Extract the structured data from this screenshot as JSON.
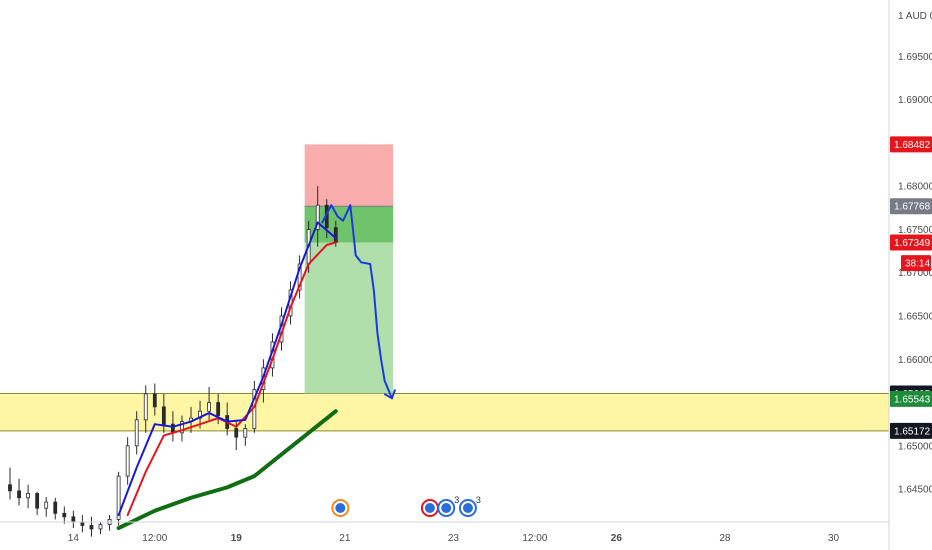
{
  "chart_data": {
    "type": "candlestick",
    "title": "",
    "currency_label": "AUD",
    "y_axis": {
      "ylim": [
        1.6412,
        1.7015
      ],
      "ticks": [
        "1.69500",
        "1.69000",
        "1.68000",
        "1.67500",
        "1.67000",
        "1.66500",
        "1.66000",
        "1.65000",
        "1.64500"
      ],
      "tick_values": [
        1.695,
        1.69,
        1.68,
        1.675,
        1.67,
        1.665,
        1.66,
        1.65,
        1.645
      ]
    },
    "x_axis": {
      "ticks": [
        {
          "label": "14",
          "i": 7,
          "bold": false
        },
        {
          "label": "12:00",
          "i": 16,
          "bold": false
        },
        {
          "label": "19",
          "i": 25,
          "bold": true
        },
        {
          "label": "21",
          "i": 37,
          "bold": false
        },
        {
          "label": "23",
          "i": 49,
          "bold": false
        },
        {
          "label": "12:00",
          "i": 58,
          "bold": false
        },
        {
          "label": "26",
          "i": 67,
          "bold": true
        },
        {
          "label": "28",
          "i": 79,
          "bold": false
        },
        {
          "label": "30",
          "i": 91,
          "bold": false
        }
      ]
    },
    "price_tags": [
      {
        "label": "1.68482",
        "value": 1.68482,
        "color": "#e5151d"
      },
      {
        "label": "1.67768",
        "value": 1.67768,
        "color": "#787b86"
      },
      {
        "label": "1.67349",
        "value": 1.67349,
        "color": "#e5151d"
      },
      {
        "label": "38:14",
        "value": 1.6711,
        "color": "#e5151d",
        "outline": true
      },
      {
        "label": "1.65605",
        "value": 1.65605,
        "color": "#131722"
      },
      {
        "label": "1.65543",
        "value": 1.65543,
        "color": "#1e8c3a"
      },
      {
        "label": "1.65172",
        "value": 1.65172,
        "color": "#131722"
      }
    ],
    "zone": {
      "from": 1.65172,
      "to": 1.65605,
      "color": "#fff59b"
    },
    "position": {
      "type": "short",
      "entry": 1.67768,
      "stop": 1.68482,
      "target": 1.65605,
      "current": 1.67349,
      "i_start": 33,
      "i_end": 42
    },
    "candles": [
      [
        1.6455,
        1.6475,
        1.6438,
        1.6448
      ],
      [
        1.6448,
        1.6462,
        1.6431,
        1.644
      ],
      [
        1.644,
        1.6455,
        1.6428,
        1.6445
      ],
      [
        1.6445,
        1.6447,
        1.642,
        1.6428
      ],
      [
        1.6428,
        1.6441,
        1.6418,
        1.6435
      ],
      [
        1.6435,
        1.644,
        1.6415,
        1.6422
      ],
      [
        1.6422,
        1.643,
        1.641,
        1.6418
      ],
      [
        1.6418,
        1.6425,
        1.6405,
        1.6412
      ],
      [
        1.6412,
        1.642,
        1.64,
        1.6408
      ],
      [
        1.6408,
        1.6418,
        1.6395,
        1.6404
      ],
      [
        1.6404,
        1.6412,
        1.6398,
        1.6409
      ],
      [
        1.6409,
        1.642,
        1.6402,
        1.6415
      ],
      [
        1.6415,
        1.647,
        1.6408,
        1.6465
      ],
      [
        1.6465,
        1.651,
        1.6455,
        1.65
      ],
      [
        1.65,
        1.654,
        1.649,
        1.653
      ],
      [
        1.653,
        1.657,
        1.6515,
        1.656
      ],
      [
        1.656,
        1.6572,
        1.6535,
        1.6545
      ],
      [
        1.6545,
        1.656,
        1.6515,
        1.6525
      ],
      [
        1.6525,
        1.654,
        1.6505,
        1.6515
      ],
      [
        1.6515,
        1.6535,
        1.6505,
        1.6528
      ],
      [
        1.6528,
        1.6545,
        1.6515,
        1.6532
      ],
      [
        1.6532,
        1.6552,
        1.652,
        1.654
      ],
      [
        1.654,
        1.6568,
        1.653,
        1.655
      ],
      [
        1.655,
        1.656,
        1.6525,
        1.6535
      ],
      [
        1.6535,
        1.655,
        1.6512,
        1.652
      ],
      [
        1.652,
        1.653,
        1.6495,
        1.651
      ],
      [
        1.651,
        1.6525,
        1.65,
        1.652
      ],
      [
        1.652,
        1.6575,
        1.6515,
        1.6565
      ],
      [
        1.6565,
        1.66,
        1.655,
        1.659
      ],
      [
        1.659,
        1.663,
        1.658,
        1.662
      ],
      [
        1.662,
        1.666,
        1.661,
        1.665
      ],
      [
        1.665,
        1.669,
        1.664,
        1.668
      ],
      [
        1.668,
        1.672,
        1.667,
        1.671
      ],
      [
        1.671,
        1.676,
        1.67,
        1.675
      ],
      [
        1.675,
        1.68,
        1.673,
        1.6778
      ],
      [
        1.6778,
        1.6785,
        1.674,
        1.6752
      ],
      [
        1.6752,
        1.676,
        1.673,
        1.6735
      ]
    ],
    "i_min": 0,
    "i_max": 96,
    "ema_fast": {
      "color": "#1a1ad6",
      "points": [
        [
          12,
          1.642
        ],
        [
          14,
          1.6475
        ],
        [
          16,
          1.6525
        ],
        [
          18,
          1.6522
        ],
        [
          20,
          1.6528
        ],
        [
          22,
          1.6538
        ],
        [
          24,
          1.6528
        ],
        [
          26,
          1.653
        ],
        [
          28,
          1.658
        ],
        [
          30,
          1.664
        ],
        [
          32,
          1.6705
        ],
        [
          34,
          1.6758
        ],
        [
          36,
          1.674
        ]
      ]
    },
    "ema_slow": {
      "color": "#e5151d",
      "points": [
        [
          13,
          1.642
        ],
        [
          15,
          1.647
        ],
        [
          17,
          1.6512
        ],
        [
          19,
          1.6518
        ],
        [
          21,
          1.6525
        ],
        [
          23,
          1.6532
        ],
        [
          25,
          1.6522
        ],
        [
          27,
          1.6545
        ],
        [
          29,
          1.66
        ],
        [
          31,
          1.666
        ],
        [
          33,
          1.671
        ],
        [
          35,
          1.6732
        ],
        [
          36,
          1.6735
        ]
      ]
    },
    "ema_long": {
      "color": "#0f6e12",
      "points": [
        [
          12,
          1.6405
        ],
        [
          16,
          1.6425
        ],
        [
          20,
          1.644
        ],
        [
          24,
          1.6452
        ],
        [
          27,
          1.6465
        ],
        [
          30,
          1.649
        ],
        [
          33,
          1.6515
        ],
        [
          36,
          1.654
        ]
      ]
    },
    "projection": {
      "color": "#1a3ae0",
      "points": [
        [
          34.5,
          1.6758
        ],
        [
          35.5,
          1.6778
        ],
        [
          36.2,
          1.6765
        ],
        [
          36.8,
          1.676
        ],
        [
          37.6,
          1.6778
        ],
        [
          38.0,
          1.674
        ],
        [
          38.2,
          1.672
        ],
        [
          38.8,
          1.6712
        ],
        [
          39.8,
          1.671
        ],
        [
          40.2,
          1.668
        ],
        [
          40.6,
          1.663
        ],
        [
          41.0,
          1.66
        ],
        [
          41.4,
          1.6575
        ],
        [
          42.2,
          1.6555
        ]
      ]
    },
    "events": [
      {
        "i": 36.5,
        "color": "#f08a24",
        "count": ""
      },
      {
        "i": 46.4,
        "color": "#e5151d",
        "count": ""
      },
      {
        "i": 48.2,
        "color": "#2b6dd8",
        "count": "3"
      },
      {
        "i": 50.6,
        "color": "#2b6dd8",
        "count": "3"
      }
    ]
  }
}
